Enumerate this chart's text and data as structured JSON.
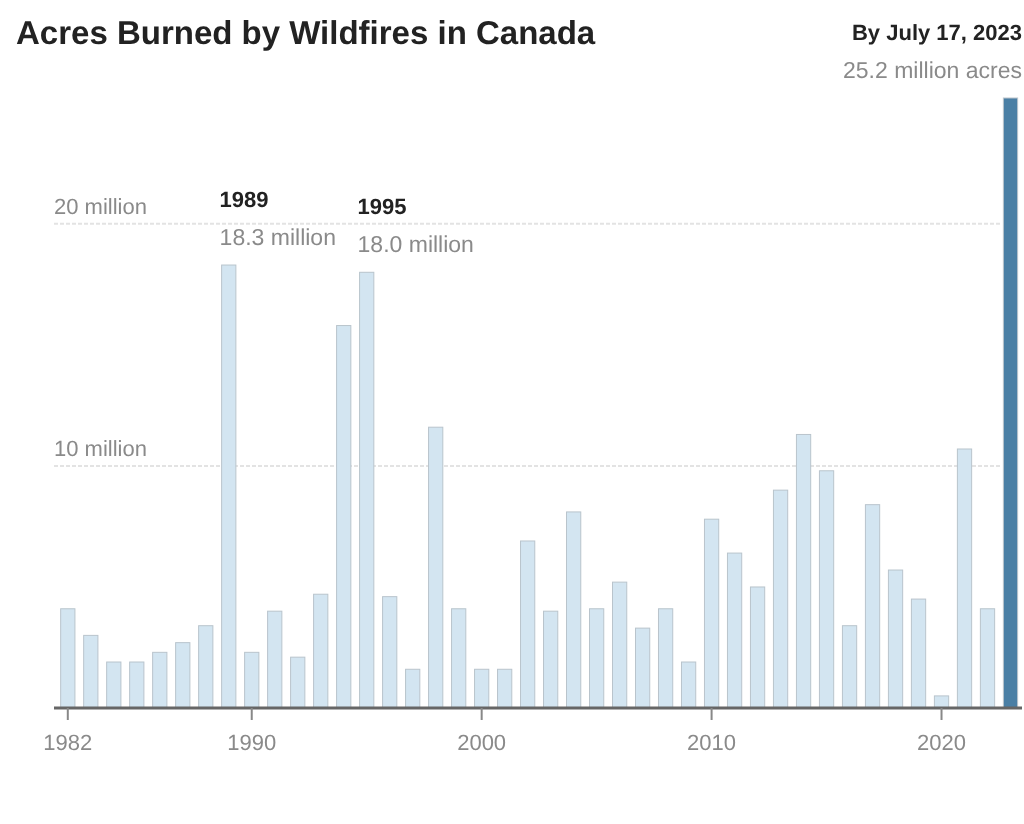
{
  "chart_data": {
    "type": "bar",
    "title": "Acres Burned by Wildfires in Canada",
    "x": [
      1982,
      1983,
      1984,
      1985,
      1986,
      1987,
      1988,
      1989,
      1990,
      1991,
      1992,
      1993,
      1994,
      1995,
      1996,
      1997,
      1998,
      1999,
      2000,
      2001,
      2002,
      2003,
      2004,
      2005,
      2006,
      2007,
      2008,
      2009,
      2010,
      2011,
      2012,
      2013,
      2014,
      2015,
      2016,
      2017,
      2018,
      2019,
      2020,
      2021,
      2022,
      2023
    ],
    "values": [
      4.1,
      3.0,
      1.9,
      1.9,
      2.3,
      2.7,
      3.4,
      18.3,
      2.3,
      4.0,
      2.1,
      4.7,
      15.8,
      18.0,
      4.6,
      1.6,
      11.6,
      4.1,
      1.6,
      1.6,
      6.9,
      4.0,
      8.1,
      4.1,
      5.2,
      3.3,
      4.1,
      1.9,
      7.8,
      6.4,
      5.0,
      9.0,
      11.3,
      9.8,
      3.4,
      8.4,
      5.7,
      4.5,
      0.5,
      10.7,
      4.1,
      25.2
    ],
    "colors": [
      "#d3e5f1",
      "#d3e5f1",
      "#d3e5f1",
      "#d3e5f1",
      "#d3e5f1",
      "#d3e5f1",
      "#d3e5f1",
      "#d3e5f1",
      "#d3e5f1",
      "#d3e5f1",
      "#d3e5f1",
      "#d3e5f1",
      "#d3e5f1",
      "#d3e5f1",
      "#d3e5f1",
      "#d3e5f1",
      "#d3e5f1",
      "#d3e5f1",
      "#d3e5f1",
      "#d3e5f1",
      "#d3e5f1",
      "#d3e5f1",
      "#d3e5f1",
      "#d3e5f1",
      "#d3e5f1",
      "#d3e5f1",
      "#d3e5f1",
      "#d3e5f1",
      "#d3e5f1",
      "#d3e5f1",
      "#d3e5f1",
      "#d3e5f1",
      "#d3e5f1",
      "#d3e5f1",
      "#d3e5f1",
      "#d3e5f1",
      "#d3e5f1",
      "#d3e5f1",
      "#d3e5f1",
      "#d3e5f1",
      "#d3e5f1",
      "#4a7fa5"
    ],
    "xlim": [
      1981.4,
      2023.5
    ],
    "xticks": [
      1982,
      1990,
      2000,
      2010,
      2020
    ],
    "ylim": [
      0,
      25.2
    ],
    "yticks": [
      {
        "value": 10,
        "label": "10 million"
      },
      {
        "value": 20,
        "label": "20 million"
      }
    ],
    "grid": "y",
    "annotations": [
      {
        "text": "1989",
        "x": 1989,
        "y": 18.3
      },
      {
        "text": "18.3 million",
        "x": 1989,
        "y": 18.3
      },
      {
        "text": "1995",
        "x": 1995,
        "y": 18.0
      },
      {
        "text": "18.0 million",
        "x": 1995,
        "y": 18.0
      },
      {
        "text": "By July 17, 2023",
        "x": 2023,
        "y": 25.2
      },
      {
        "text": "25.2 million acres",
        "x": 2023,
        "y": 25.2
      }
    ]
  }
}
